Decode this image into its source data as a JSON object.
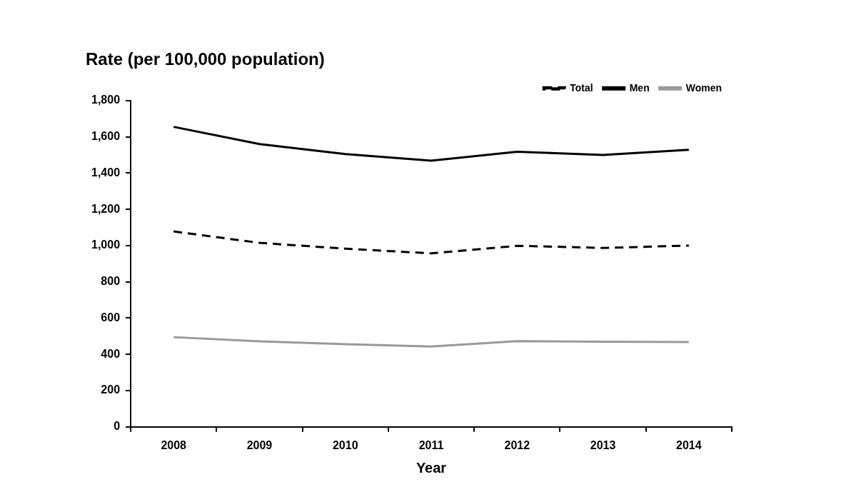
{
  "chart_data": {
    "type": "line",
    "title": "Rate (per 100,000 population)",
    "x_label": "Year",
    "categories": [
      "2008",
      "2009",
      "2010",
      "2011",
      "2012",
      "2013",
      "2014"
    ],
    "series": [
      {
        "name": "Total",
        "color": "#000000",
        "line_style": "dashed",
        "marker": "none",
        "values": [
          1078,
          1015,
          983,
          957,
          999,
          987,
          1000
        ]
      },
      {
        "name": "Men",
        "color": "#000000",
        "line_style": "solid",
        "marker": "none",
        "values": [
          1655,
          1560,
          1505,
          1468,
          1518,
          1500,
          1528
        ]
      },
      {
        "name": "Women",
        "color": "#999999",
        "line_style": "solid",
        "marker": "none",
        "values": [
          495,
          472,
          456,
          443,
          473,
          470,
          468
        ]
      }
    ],
    "ylim": [
      0,
      1800
    ],
    "yticks": [
      0,
      200,
      400,
      600,
      800,
      {
        "value": 1000,
        "label": "1,000"
      },
      {
        "value": 1200,
        "label": "1,200"
      },
      {
        "value": 1400,
        "label": "1,400"
      },
      {
        "value": 1600,
        "label": "1,600"
      },
      {
        "value": 1800,
        "label": "1,800"
      }
    ],
    "grid": false,
    "legend": "upper right"
  }
}
